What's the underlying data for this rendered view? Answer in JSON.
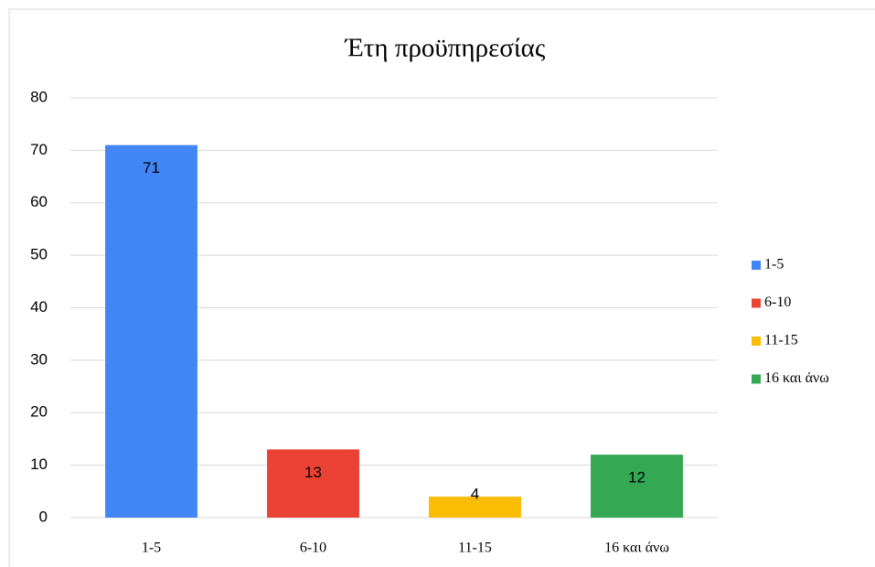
{
  "chart_data": {
    "type": "bar",
    "title": "Έτη προϋπηρεσίας",
    "categories": [
      "1-5",
      "6-10",
      "11-15",
      "16 και άνω"
    ],
    "values": [
      71,
      13,
      4,
      12
    ],
    "colors": [
      "#4285f4",
      "#ea4335",
      "#fbbc04",
      "#34a853"
    ],
    "ylim": [
      0,
      80
    ],
    "yticks": [
      0,
      10,
      20,
      30,
      40,
      50,
      60,
      70,
      80
    ],
    "grid": true,
    "legend": "right"
  }
}
